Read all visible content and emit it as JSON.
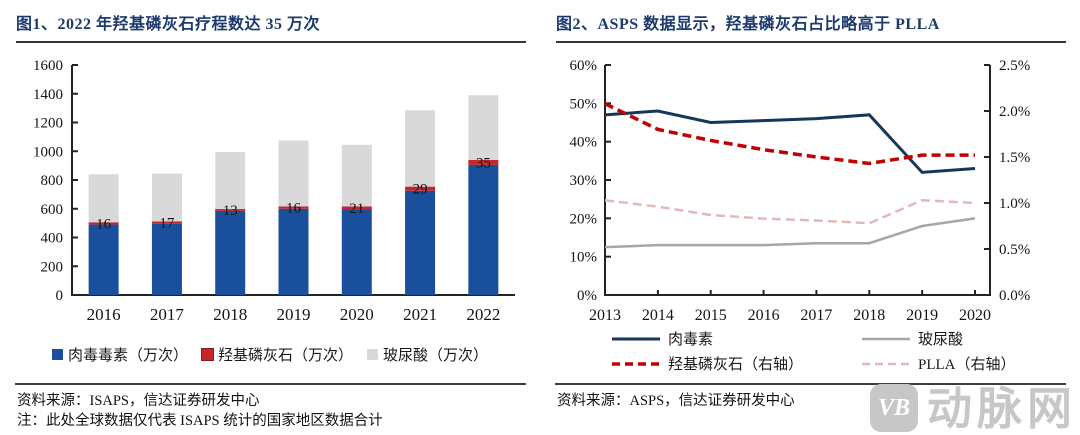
{
  "panel1": {
    "title": "图1、2022 年羟基磷灰石疗程数达 35 万次",
    "source": "资料来源：ISAPS，信达证券研发中心",
    "note": "注：此处全球数据仅代表 ISAPS 统计的国家地区数据合计"
  },
  "panel2": {
    "title": "图2、ASPS 数据显示，羟基磷灰石占比略高于 PLLA",
    "source": "资料来源：ASPS，信达证券研发中心"
  },
  "watermark": {
    "badge": "VB",
    "text": "动脉网",
    "color": "#c7c7c7"
  },
  "chart_data": [
    {
      "type": "bar",
      "stacked": true,
      "title": "2022 年羟基磷灰石疗程数达 35 万次",
      "categories": [
        "2016",
        "2017",
        "2018",
        "2019",
        "2020",
        "2021",
        "2022"
      ],
      "series": [
        {
          "name": "肉毒毒素（万次）",
          "color": "#1a4f9c",
          "values": [
            490,
            495,
            585,
            600,
            595,
            725,
            905
          ]
        },
        {
          "name": "羟基磷灰石（万次）",
          "color": "#c1272d",
          "values": [
            16,
            17,
            13,
            16,
            21,
            29,
            35
          ]
        },
        {
          "name": "玻尿酸（万次）",
          "color": "#d9d9d9",
          "values": [
            334,
            333,
            397,
            459,
            429,
            531,
            450
          ]
        }
      ],
      "label_series": 1,
      "bar_labels": [
        "16",
        "17",
        "13",
        "16",
        "21",
        "29",
        "35"
      ],
      "ylim": [
        0,
        1600
      ],
      "ystep": 200,
      "grid": false,
      "legend_position": "bottom"
    },
    {
      "type": "line",
      "title": "ASPS 数据显示，羟基磷灰石占比略高于 PLLA",
      "x": [
        "2013",
        "2014",
        "2015",
        "2016",
        "2017",
        "2018",
        "2019",
        "2020"
      ],
      "left_axis": {
        "min": 0,
        "max": 60,
        "step": 10,
        "suffix": "%",
        "decimals": 0
      },
      "right_axis": {
        "min": 0,
        "max": 2.5,
        "step": 0.5,
        "suffix": "%",
        "decimals": 1
      },
      "series": [
        {
          "name": "肉毒素",
          "axis": "left",
          "color": "#16365c",
          "dashed": false,
          "width": 3,
          "values": [
            47,
            48,
            45,
            45.5,
            46,
            47,
            32,
            33
          ]
        },
        {
          "name": "玻尿酸",
          "axis": "left",
          "color": "#a6a6a6",
          "dashed": false,
          "width": 2.5,
          "values": [
            12.5,
            13,
            13,
            13,
            13.5,
            13.5,
            18,
            20
          ]
        },
        {
          "name": "羟基磷灰石（右轴）",
          "axis": "right",
          "color": "#c00000",
          "dashed": true,
          "width": 3.5,
          "values": [
            2.08,
            1.8,
            1.68,
            1.58,
            1.5,
            1.43,
            1.52,
            1.52
          ]
        },
        {
          "name": "PLLA（右轴）",
          "axis": "right",
          "color": "#e5b8b7",
          "dashed": true,
          "width": 2.5,
          "values": [
            1.03,
            0.96,
            0.87,
            0.83,
            0.81,
            0.78,
            1.03,
            1.0
          ]
        }
      ],
      "grid": false,
      "legend_position": "bottom"
    }
  ]
}
